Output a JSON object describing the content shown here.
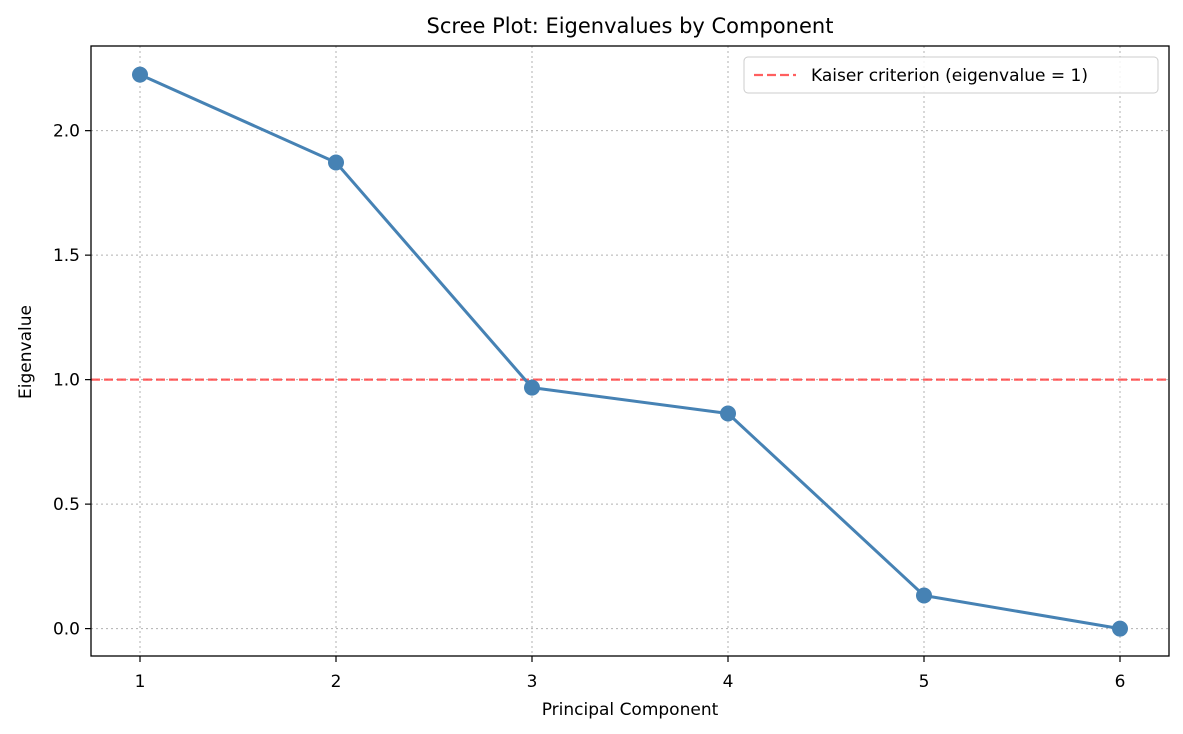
{
  "chart_data": {
    "type": "line",
    "title": "Scree Plot: Eigenvalues by Component",
    "xlabel": "Principal Component",
    "ylabel": "Eigenvalue",
    "x": [
      1,
      2,
      3,
      4,
      5,
      6
    ],
    "xticks": [
      "1",
      "2",
      "3",
      "4",
      "5",
      "6"
    ],
    "yticks": [
      "0.0",
      "0.5",
      "1.0",
      "1.5",
      "2.0"
    ],
    "xlim": [
      0.75,
      6.25
    ],
    "ylim": [
      -0.11,
      2.34
    ],
    "grid": true,
    "series": [
      {
        "values": [
          2.225,
          1.872,
          0.968,
          0.864,
          0.133,
          0.0
        ],
        "color": "#4682b4",
        "marker": "circle"
      }
    ],
    "reference_lines": [
      {
        "y": 1.0,
        "label": "Kaiser criterion (eigenvalue = 1)",
        "color": "#ff4444",
        "style": "dashed"
      }
    ],
    "legend": {
      "position": "top-right"
    }
  }
}
